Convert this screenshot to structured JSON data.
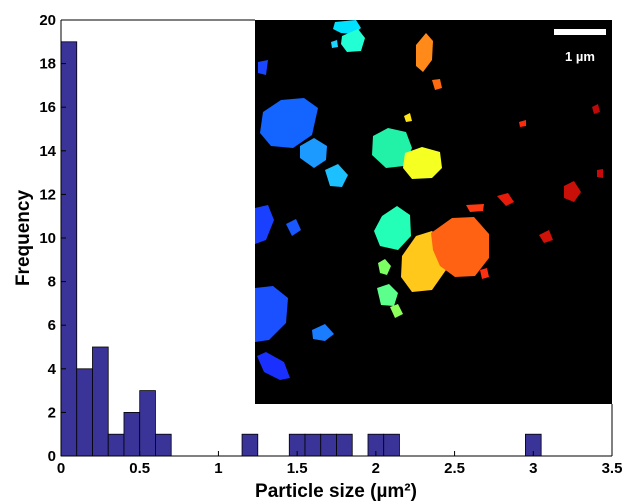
{
  "chart_data": {
    "type": "bar",
    "xlabel": "Particle size (µm²)",
    "ylabel": "Frequency",
    "xlim": [
      0,
      3.5
    ],
    "ylim": [
      0,
      20
    ],
    "xticks": [
      "0",
      "0.5",
      "1",
      "1.5",
      "2",
      "2.5",
      "3",
      "3.5"
    ],
    "yticks": [
      "0",
      "2",
      "4",
      "6",
      "8",
      "10",
      "12",
      "14",
      "16",
      "18",
      "20"
    ],
    "bin_width": 0.1,
    "bars": [
      {
        "x_start": 0.0,
        "count": 19
      },
      {
        "x_start": 0.1,
        "count": 4
      },
      {
        "x_start": 0.2,
        "count": 5
      },
      {
        "x_start": 0.3,
        "count": 1
      },
      {
        "x_start": 0.4,
        "count": 2
      },
      {
        "x_start": 0.5,
        "count": 3
      },
      {
        "x_start": 0.6,
        "count": 1
      },
      {
        "x_start": 1.15,
        "count": 1
      },
      {
        "x_start": 1.45,
        "count": 1
      },
      {
        "x_start": 1.55,
        "count": 1
      },
      {
        "x_start": 1.65,
        "count": 1
      },
      {
        "x_start": 1.75,
        "count": 1
      },
      {
        "x_start": 1.95,
        "count": 1
      },
      {
        "x_start": 2.05,
        "count": 1
      },
      {
        "x_start": 2.95,
        "count": 1
      }
    ],
    "bar_color": "#3a3498",
    "grid": false
  },
  "inset": {
    "scale_bar_label": "1 µm",
    "background": "#000000"
  }
}
